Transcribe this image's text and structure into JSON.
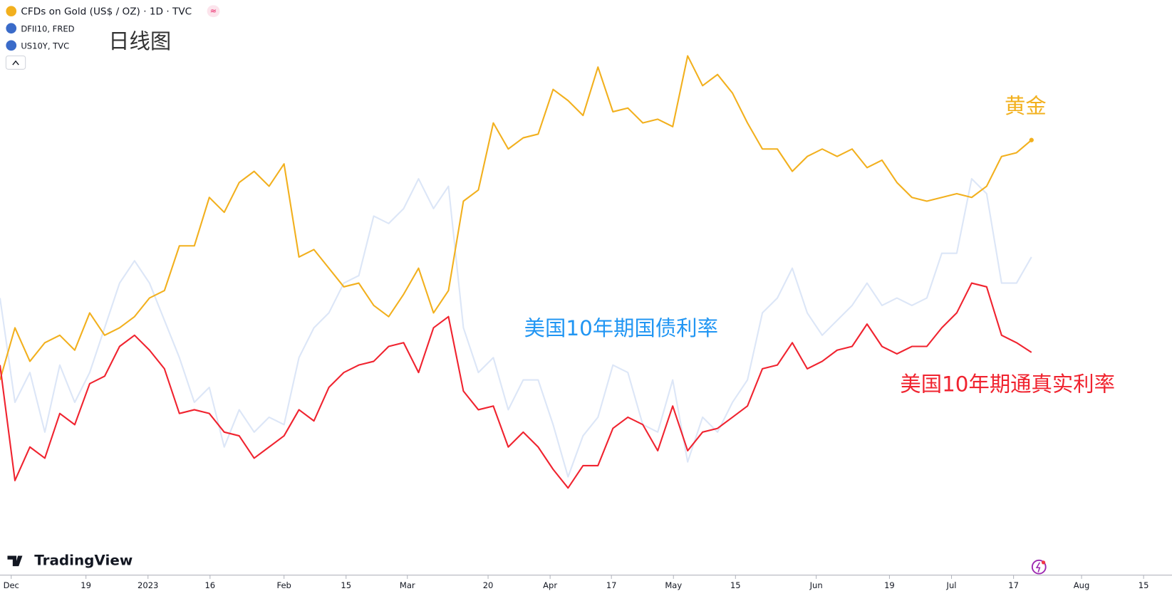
{
  "header": {
    "subtitle": "日线图",
    "brand": "TradingView"
  },
  "chart_data": {
    "type": "line",
    "series": [
      {
        "name": "US10Y, TVC",
        "color": "#dce6f7",
        "values": [
          400,
          260,
          300,
          220,
          310,
          260,
          300,
          360,
          420,
          450,
          420,
          370,
          320,
          260,
          280,
          200,
          250,
          220,
          240,
          230,
          320,
          360,
          380,
          420,
          430,
          510,
          500,
          520,
          560,
          520,
          550,
          360,
          300,
          320,
          250,
          290,
          290,
          230,
          160,
          215,
          240,
          310,
          300,
          230,
          220,
          290,
          180,
          240,
          220,
          260,
          290,
          380,
          400,
          440,
          380,
          350,
          370,
          390,
          420,
          390,
          400,
          390,
          400,
          460,
          460,
          560,
          540,
          420,
          420,
          455
        ]
      },
      {
        "name": "CFDs on Gold (US$ / OZ) · 1D · TVC",
        "color": "#f2b01e",
        "values": [
          290,
          360,
          315,
          340,
          350,
          330,
          380,
          350,
          360,
          375,
          400,
          410,
          470,
          470,
          535,
          515,
          555,
          570,
          550,
          580,
          455,
          465,
          440,
          415,
          420,
          390,
          375,
          405,
          440,
          380,
          410,
          530,
          545,
          635,
          600,
          615,
          620,
          680,
          665,
          645,
          710,
          650,
          655,
          635,
          640,
          630,
          725,
          685,
          700,
          675,
          635,
          600,
          600,
          570,
          590,
          600,
          590,
          600,
          575,
          585,
          555,
          535,
          530,
          535,
          540,
          535,
          550,
          590,
          595,
          612
        ]
      },
      {
        "name": "DFII10, FRED",
        "color": "#f0232f",
        "values": [
          310,
          155,
          200,
          185,
          245,
          230,
          285,
          295,
          335,
          350,
          330,
          305,
          245,
          250,
          245,
          220,
          215,
          185,
          200,
          215,
          250,
          235,
          280,
          300,
          310,
          315,
          335,
          340,
          300,
          360,
          375,
          275,
          250,
          255,
          200,
          220,
          200,
          170,
          145,
          175,
          175,
          225,
          240,
          230,
          195,
          255,
          195,
          220,
          225,
          240,
          255,
          305,
          310,
          340,
          305,
          315,
          330,
          335,
          365,
          335,
          325,
          335,
          335,
          360,
          380,
          420,
          415,
          350,
          340,
          327
        ]
      }
    ],
    "ylim": [
      0,
      800
    ],
    "xlim": [
      0,
      78.4
    ],
    "xticks": [
      {
        "value": 0.75,
        "label": "Dec"
      },
      {
        "value": 5.75,
        "label": "19"
      },
      {
        "value": 9.9,
        "label": "2023"
      },
      {
        "value": 14.05,
        "label": "16"
      },
      {
        "value": 19,
        "label": "Feb"
      },
      {
        "value": 23.15,
        "label": "15"
      },
      {
        "value": 27.25,
        "label": "Mar"
      },
      {
        "value": 32.65,
        "label": "20"
      },
      {
        "value": 36.8,
        "label": "Apr"
      },
      {
        "value": 40.9,
        "label": "17"
      },
      {
        "value": 45.05,
        "label": "May"
      },
      {
        "value": 49.2,
        "label": "15"
      },
      {
        "value": 54.6,
        "label": "Jun"
      },
      {
        "value": 59.5,
        "label": "19"
      },
      {
        "value": 63.65,
        "label": "Jul"
      },
      {
        "value": 67.8,
        "label": "17"
      },
      {
        "value": 72.35,
        "label": "Aug"
      },
      {
        "value": 76.5,
        "label": "15"
      }
    ],
    "annotations": [
      {
        "text": "黄金",
        "color": "#f2b01e"
      },
      {
        "text": "美国10年期国债利率",
        "color": "#2196f3"
      },
      {
        "text": "美国10年期通真实利率",
        "color": "#f0232f"
      }
    ]
  }
}
